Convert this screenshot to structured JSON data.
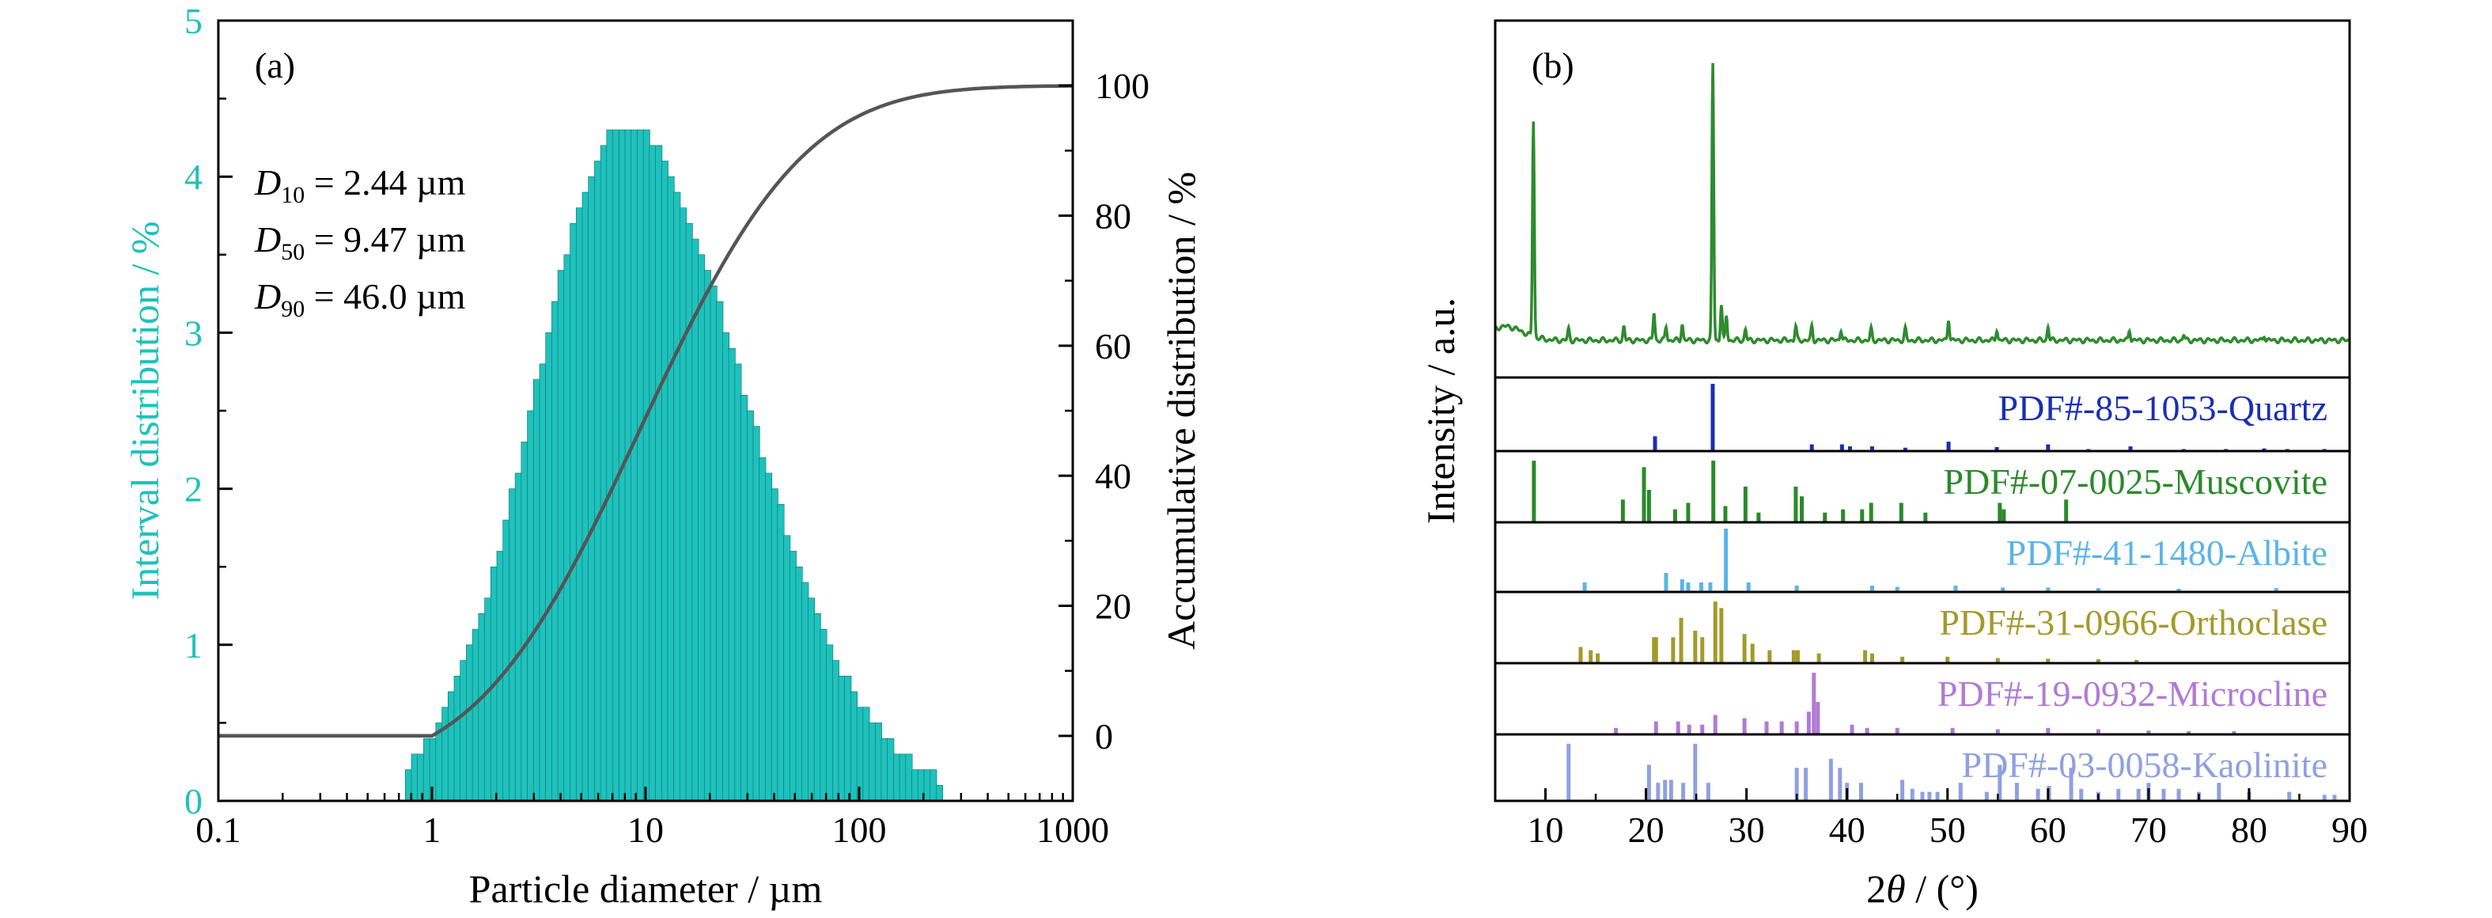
{
  "colors": {
    "teal": "#1fc1bc",
    "axis": "#000000",
    "curve": "#555555",
    "xrd": "#2e8b2e",
    "quartz": "#1a2fb4",
    "muscovite": "#2a8a2a",
    "albite": "#5ab4e6",
    "orthoclase": "#a39a2a",
    "microcline": "#b07ad6",
    "kaolinite": "#8fa0e0"
  },
  "chart_data": [
    {
      "type": "bar",
      "panel_label": "(a)",
      "xlabel": "Particle diameter / µm",
      "ylabel": "Interval distribution / %",
      "y2label": "Accumulative distribution / %",
      "xscale": "log",
      "xlim": [
        0.1,
        1000
      ],
      "ylim": [
        0,
        5
      ],
      "y2lim": [
        -10,
        110
      ],
      "x_ticks": [
        "0.1",
        "1",
        "10",
        "100",
        "1000"
      ],
      "y_ticks": [
        "0",
        "1",
        "2",
        "3",
        "4",
        "5"
      ],
      "y2_ticks": [
        "0",
        "20",
        "40",
        "60",
        "80",
        "100"
      ],
      "annotations": [
        {
          "sym": "D",
          "sub": "10",
          "val": " = 2.44 µm"
        },
        {
          "sym": "D",
          "sub": "50",
          "val": " = 9.47 µm"
        },
        {
          "sym": "D",
          "sub": "90",
          "val": " = 46.0 µm"
        }
      ],
      "interval_distribution": {
        "x_min": 0.75,
        "x_max": 230,
        "mode_x": 8.0,
        "peak_y": 4.33,
        "log_sigma_left": 0.42,
        "log_sigma_right": 0.56,
        "bins_per_decade": 35,
        "step_y": 0.1
      },
      "accumulative_distribution": {
        "median_x": 9.47,
        "log_sigma": 0.6,
        "flat_below_x": 1.0,
        "flat_value": 0,
        "top_value": 100
      },
      "legend": "none",
      "grid": false
    },
    {
      "type": "line",
      "panel_label": "(b)",
      "xlabel": "2θ / (°)",
      "ylabel": "Intensity / a.u.",
      "xlim": [
        5,
        90
      ],
      "x_ticks": [
        "10",
        "20",
        "30",
        "40",
        "50",
        "60",
        "70",
        "80",
        "90"
      ],
      "measured_pattern": {
        "baseline": 0.05,
        "peaks": [
          {
            "x": 8.8,
            "h": 0.78
          },
          {
            "x": 12.3,
            "h": 0.04
          },
          {
            "x": 17.8,
            "h": 0.05
          },
          {
            "x": 20.8,
            "h": 0.1
          },
          {
            "x": 22.0,
            "h": 0.05
          },
          {
            "x": 23.6,
            "h": 0.06
          },
          {
            "x": 26.65,
            "h": 1.0
          },
          {
            "x": 27.5,
            "h": 0.13
          },
          {
            "x": 28.0,
            "h": 0.09
          },
          {
            "x": 29.9,
            "h": 0.04
          },
          {
            "x": 34.9,
            "h": 0.05
          },
          {
            "x": 36.5,
            "h": 0.05
          },
          {
            "x": 39.4,
            "h": 0.04
          },
          {
            "x": 42.4,
            "h": 0.04
          },
          {
            "x": 45.8,
            "h": 0.04
          },
          {
            "x": 50.1,
            "h": 0.08
          },
          {
            "x": 54.9,
            "h": 0.04
          },
          {
            "x": 60.0,
            "h": 0.05
          },
          {
            "x": 68.1,
            "h": 0.04
          },
          {
            "x": 73.5,
            "h": 0.02
          },
          {
            "x": 81.5,
            "h": 0.02
          }
        ]
      },
      "reference_patterns": [
        {
          "name": "PDF#-85-1053-Quartz",
          "color_key": "quartz",
          "peaks": [
            [
              20.9,
              0.22
            ],
            [
              26.64,
              1.0
            ],
            [
              36.5,
              0.1
            ],
            [
              39.5,
              0.1
            ],
            [
              40.3,
              0.07
            ],
            [
              42.5,
              0.07
            ],
            [
              45.8,
              0.05
            ],
            [
              50.1,
              0.14
            ],
            [
              54.9,
              0.06
            ],
            [
              60.0,
              0.1
            ],
            [
              64.0,
              0.03
            ],
            [
              68.2,
              0.07
            ],
            [
              73.5,
              0.03
            ],
            [
              77.7,
              0.03
            ],
            [
              81.5,
              0.04
            ],
            [
              83.8,
              0.03
            ],
            [
              87.5,
              0.03
            ]
          ]
        },
        {
          "name": "PDF#-07-0025-Muscovite",
          "color_key": "muscovite",
          "peaks": [
            [
              8.85,
              0.95
            ],
            [
              17.7,
              0.35
            ],
            [
              19.8,
              0.85
            ],
            [
              20.3,
              0.5
            ],
            [
              22.9,
              0.2
            ],
            [
              24.2,
              0.3
            ],
            [
              26.7,
              0.95
            ],
            [
              27.9,
              0.25
            ],
            [
              29.9,
              0.55
            ],
            [
              31.2,
              0.15
            ],
            [
              34.9,
              0.55
            ],
            [
              35.5,
              0.4
            ],
            [
              37.8,
              0.15
            ],
            [
              39.6,
              0.2
            ],
            [
              41.5,
              0.2
            ],
            [
              42.4,
              0.3
            ],
            [
              45.4,
              0.3
            ],
            [
              47.8,
              0.15
            ],
            [
              55.2,
              0.3
            ],
            [
              55.6,
              0.2
            ],
            [
              61.8,
              0.35
            ]
          ]
        },
        {
          "name": "PDF#-41-1480-Albite",
          "color_key": "albite",
          "peaks": [
            [
              13.9,
              0.15
            ],
            [
              22.0,
              0.3
            ],
            [
              23.6,
              0.2
            ],
            [
              24.2,
              0.15
            ],
            [
              25.5,
              0.15
            ],
            [
              26.4,
              0.15
            ],
            [
              27.95,
              1.0
            ],
            [
              30.2,
              0.15
            ],
            [
              35.0,
              0.1
            ],
            [
              42.5,
              0.1
            ],
            [
              45.0,
              0.08
            ],
            [
              50.8,
              0.1
            ],
            [
              55.5,
              0.07
            ],
            [
              60.0,
              0.07
            ],
            [
              65.0,
              0.06
            ],
            [
              73.0,
              0.05
            ],
            [
              82.7,
              0.06
            ]
          ]
        },
        {
          "name": "PDF#-31-0966-Orthoclase",
          "color_key": "orthoclase",
          "peaks": [
            [
              13.5,
              0.25
            ],
            [
              14.5,
              0.2
            ],
            [
              15.2,
              0.15
            ],
            [
              20.8,
              0.4
            ],
            [
              21.0,
              0.4
            ],
            [
              22.7,
              0.4
            ],
            [
              23.5,
              0.7
            ],
            [
              24.9,
              0.5
            ],
            [
              25.6,
              0.4
            ],
            [
              26.9,
              0.95
            ],
            [
              27.5,
              0.85
            ],
            [
              29.8,
              0.45
            ],
            [
              30.6,
              0.3
            ],
            [
              32.3,
              0.2
            ],
            [
              34.7,
              0.2
            ],
            [
              35.1,
              0.2
            ],
            [
              37.2,
              0.15
            ],
            [
              41.8,
              0.2
            ],
            [
              42.5,
              0.15
            ],
            [
              45.5,
              0.1
            ],
            [
              50.0,
              0.1
            ],
            [
              55.0,
              0.08
            ],
            [
              60.0,
              0.07
            ],
            [
              65.0,
              0.06
            ],
            [
              68.8,
              0.05
            ]
          ]
        },
        {
          "name": "PDF#-19-0932-Microcline",
          "color_key": "microcline",
          "peaks": [
            [
              17.0,
              0.1
            ],
            [
              21.0,
              0.2
            ],
            [
              23.2,
              0.2
            ],
            [
              24.3,
              0.15
            ],
            [
              25.6,
              0.15
            ],
            [
              26.9,
              0.3
            ],
            [
              29.8,
              0.25
            ],
            [
              32.0,
              0.2
            ],
            [
              33.5,
              0.2
            ],
            [
              35.0,
              0.2
            ],
            [
              36.2,
              0.35
            ],
            [
              36.7,
              0.95
            ],
            [
              37.1,
              0.5
            ],
            [
              40.5,
              0.15
            ],
            [
              42.0,
              0.1
            ],
            [
              45.0,
              0.1
            ],
            [
              50.5,
              0.1
            ],
            [
              55.0,
              0.08
            ],
            [
              60.0,
              0.1
            ],
            [
              65.0,
              0.08
            ],
            [
              70.0,
              0.06
            ],
            [
              74.0,
              0.05
            ],
            [
              78.5,
              0.05
            ]
          ]
        },
        {
          "name": "PDF#-03-0058-Kaolinite",
          "color_key": "kaolinite",
          "peaks": [
            [
              12.3,
              0.95
            ],
            [
              20.3,
              0.6
            ],
            [
              21.2,
              0.3
            ],
            [
              21.9,
              0.35
            ],
            [
              22.5,
              0.35
            ],
            [
              23.7,
              0.3
            ],
            [
              24.9,
              0.95
            ],
            [
              26.2,
              0.3
            ],
            [
              35.0,
              0.55
            ],
            [
              35.9,
              0.55
            ],
            [
              38.4,
              0.7
            ],
            [
              39.3,
              0.55
            ],
            [
              40.0,
              0.3
            ],
            [
              41.4,
              0.3
            ],
            [
              45.5,
              0.35
            ],
            [
              46.5,
              0.2
            ],
            [
              47.5,
              0.15
            ],
            [
              48.2,
              0.15
            ],
            [
              49.0,
              0.15
            ],
            [
              51.3,
              0.3
            ],
            [
              53.9,
              0.15
            ],
            [
              55.2,
              0.6
            ],
            [
              56.9,
              0.3
            ],
            [
              59.0,
              0.2
            ],
            [
              60.1,
              0.25
            ],
            [
              62.3,
              0.55
            ],
            [
              63.3,
              0.2
            ],
            [
              65.0,
              0.15
            ],
            [
              67.0,
              0.2
            ],
            [
              69.0,
              0.2
            ],
            [
              70.0,
              0.3
            ],
            [
              71.5,
              0.2
            ],
            [
              73.0,
              0.2
            ],
            [
              75.0,
              0.15
            ],
            [
              77.0,
              0.3
            ],
            [
              80.0,
              0.15
            ],
            [
              84.0,
              0.15
            ],
            [
              87.5,
              0.1
            ],
            [
              88.5,
              0.1
            ]
          ]
        }
      ],
      "legend": "none",
      "grid": false
    }
  ]
}
